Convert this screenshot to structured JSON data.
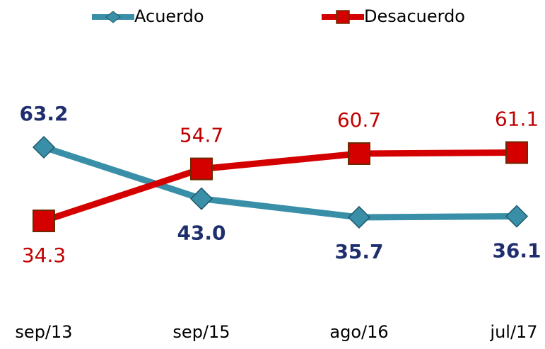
{
  "chart_data": {
    "type": "line",
    "categories": [
      "sep/13",
      "sep/15",
      "ago/16",
      "jul/17"
    ],
    "series": [
      {
        "name": "Acuerdo",
        "color": "#3a8fa8",
        "label_color": "#1f2f6e",
        "values": [
          63.2,
          43.0,
          35.7,
          36.1
        ],
        "value_labels": [
          "63.2",
          "43.0",
          "35.7",
          "36.1"
        ]
      },
      {
        "name": "Desacuerdo",
        "color": "#d40000",
        "label_color": "#c00000",
        "values": [
          34.3,
          54.7,
          60.7,
          61.1
        ],
        "value_labels": [
          "34.3",
          "54.7",
          "60.7",
          "61.1"
        ]
      }
    ],
    "legend": "top"
  }
}
